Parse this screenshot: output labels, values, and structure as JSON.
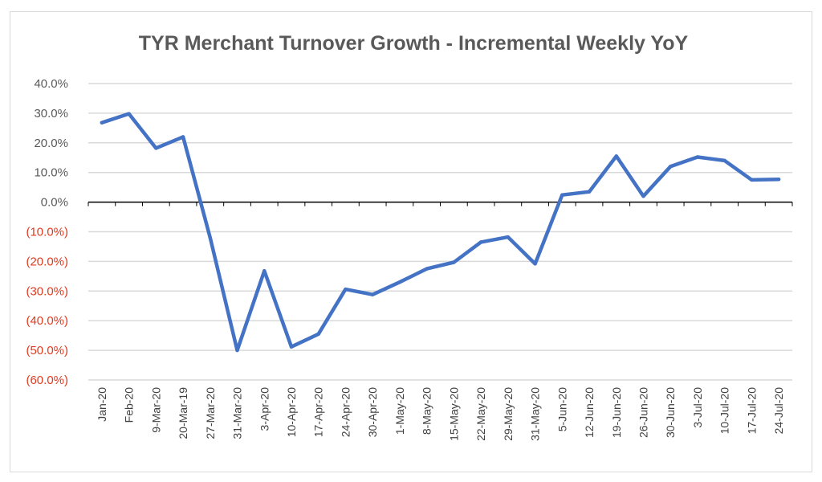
{
  "chart_data": {
    "type": "line",
    "title": "TYR Merchant Turnover Growth - Incremental Weekly YoY",
    "xlabel": "",
    "ylabel": "",
    "ylim": [
      -60,
      40
    ],
    "yticks": [
      {
        "value": 40,
        "label": "40.0%"
      },
      {
        "value": 30,
        "label": "30.0%"
      },
      {
        "value": 20,
        "label": "20.0%"
      },
      {
        "value": 10,
        "label": "10.0%"
      },
      {
        "value": 0,
        "label": "0.0%"
      },
      {
        "value": -10,
        "label": "(10.0%)"
      },
      {
        "value": -20,
        "label": "(20.0%)"
      },
      {
        "value": -30,
        "label": "(30.0%)"
      },
      {
        "value": -40,
        "label": "(40.0%)"
      },
      {
        "value": -50,
        "label": "(50.0%)"
      },
      {
        "value": -60,
        "label": "(60.0%)"
      }
    ],
    "categories": [
      "Jan-20",
      "Feb-20",
      "9-Mar-20",
      "20-Mar-19",
      "27-Mar-20",
      "31-Mar-20",
      "3-Apr-20",
      "10-Apr-20",
      "17-Apr-20",
      "24-Apr-20",
      "30-Apr-20",
      "1-May-20",
      "8-May-20",
      "15-May-20",
      "22-May-20",
      "29-May-20",
      "31-May-20",
      "5-Jun-20",
      "12-Jun-20",
      "19-Jun-20",
      "26-Jun-20",
      "30-Jun-20",
      "3-Jul-20",
      "10-Jul-20",
      "17-Jul-20",
      "24-Jul-20"
    ],
    "values": [
      26.8,
      29.8,
      18.2,
      22.0,
      -12.0,
      -50.0,
      -23.2,
      -48.8,
      -44.5,
      -29.4,
      -31.2,
      -27.0,
      -22.5,
      -20.3,
      -13.5,
      -11.8,
      -20.8,
      2.4,
      3.5,
      15.5,
      2.0,
      12.0,
      15.2,
      14.0,
      7.5,
      7.7
    ],
    "grid": true,
    "legend": "none",
    "colors": {
      "line": "#4472c4",
      "grid": "#d9d9d9",
      "axis": "#000000",
      "positive_label": "#595959",
      "negative_label": "#e03a1e"
    }
  }
}
